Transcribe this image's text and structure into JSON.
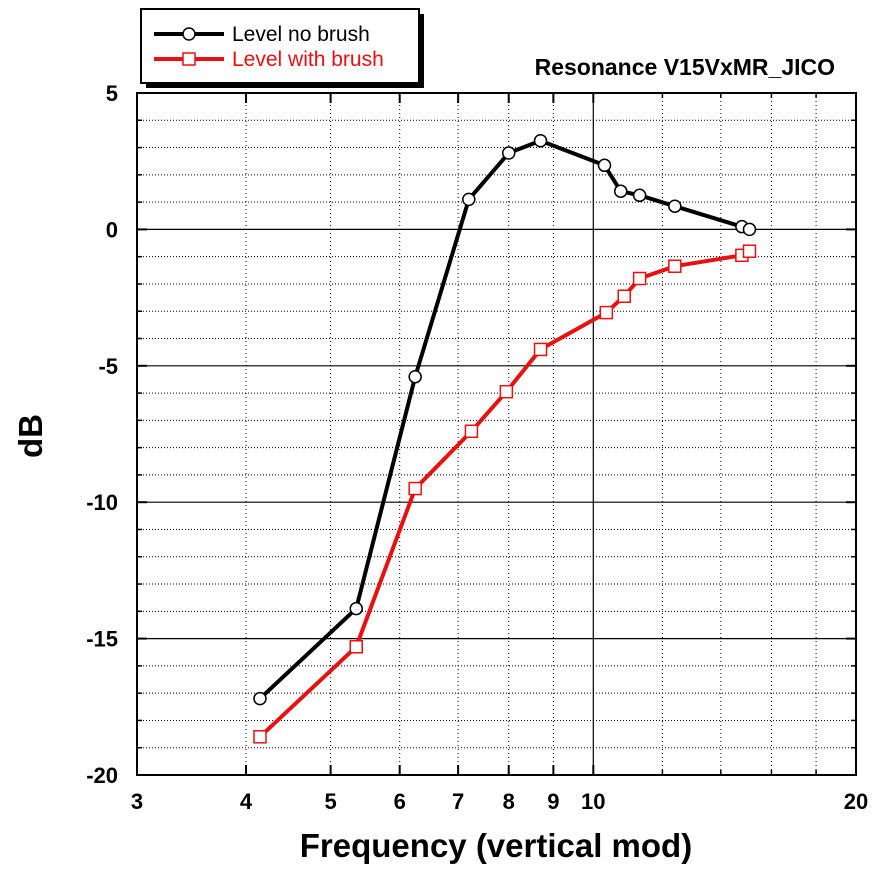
{
  "chart_data": {
    "type": "line",
    "title": "Resonance V15VxMR_JICO",
    "xlabel": "Frequency (vertical mod)",
    "ylabel": "dB",
    "x_scale": "log",
    "xlim": [
      3,
      20
    ],
    "ylim": [
      -20,
      5
    ],
    "x_ticks": [
      3,
      4,
      5,
      6,
      7,
      8,
      9,
      10,
      20
    ],
    "y_ticks": [
      5,
      0,
      -5,
      -10,
      -15,
      -20
    ],
    "grid": true,
    "legend_position": "top-left",
    "series": [
      {
        "name": "Level no brush",
        "color": "#000000",
        "marker": "circle",
        "x": [
          4.15,
          5.35,
          6.25,
          7.2,
          8.0,
          8.7,
          10.3,
          10.75,
          11.3,
          12.4,
          14.8,
          15.1
        ],
        "y": [
          -17.2,
          -13.9,
          -5.4,
          1.1,
          2.8,
          3.25,
          2.35,
          1.4,
          1.25,
          0.85,
          0.1,
          0.0
        ]
      },
      {
        "name": "Level with brush",
        "color": "#e81010",
        "marker": "square",
        "x": [
          4.15,
          5.35,
          6.25,
          7.25,
          7.95,
          8.7,
          10.35,
          10.85,
          11.3,
          12.4,
          14.8,
          15.1
        ],
        "y": [
          -18.6,
          -15.3,
          -9.5,
          -7.4,
          -5.95,
          -4.4,
          -3.05,
          -2.45,
          -1.8,
          -1.35,
          -0.95,
          -0.8
        ]
      }
    ]
  }
}
